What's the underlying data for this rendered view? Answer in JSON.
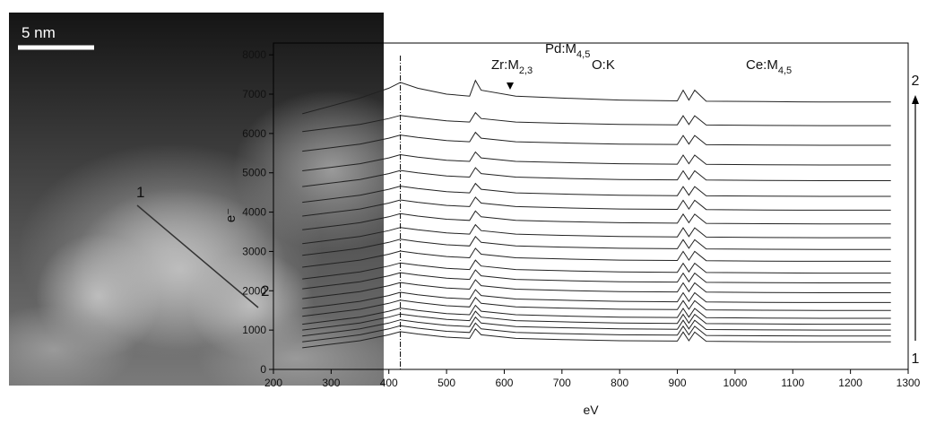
{
  "image": {
    "scale_bar": "5 nm",
    "point_labels": [
      "1",
      "2"
    ]
  },
  "chart_data": {
    "type": "line",
    "xlabel": "eV",
    "ylabel": "e⁻",
    "xlim": [
      200,
      1300
    ],
    "xticks": [
      200,
      300,
      400,
      500,
      600,
      700,
      800,
      900,
      1000,
      1100,
      1200,
      1300
    ],
    "ylim": [
      0,
      8300
    ],
    "yticks": [
      0,
      1000,
      2000,
      3000,
      4000,
      5000,
      6000,
      7000,
      8000
    ],
    "reference_line": 420,
    "annotations": [
      {
        "text": "Zr:M",
        "sub": "2,3"
      },
      {
        "text": "Pd:M",
        "sub": "4,5"
      },
      {
        "text": "O:K"
      },
      {
        "text": "Ce:M",
        "sub": "4,5"
      }
    ],
    "scan_labels": [
      "1",
      "2"
    ],
    "x": [
      250,
      300,
      350,
      400,
      420,
      450,
      500,
      540,
      550,
      560,
      620,
      700,
      800,
      900,
      910,
      920,
      930,
      950,
      1050,
      1150,
      1270
    ],
    "series": [
      {
        "color": "#222",
        "values": [
          550,
          640,
          730,
          880,
          960,
          900,
          820,
          790,
          1030,
          880,
          790,
          760,
          730,
          720,
          950,
          730,
          950,
          715,
          705,
          700,
          700
        ]
      },
      {
        "color": "#222",
        "values": [
          700,
          790,
          880,
          1030,
          1110,
          1050,
          970,
          940,
          1180,
          1030,
          940,
          910,
          880,
          870,
          1100,
          880,
          1100,
          865,
          855,
          850,
          850
        ]
      },
      {
        "color": "#222",
        "values": [
          850,
          940,
          1030,
          1180,
          1260,
          1200,
          1120,
          1090,
          1330,
          1180,
          1090,
          1060,
          1030,
          1020,
          1250,
          1030,
          1250,
          1015,
          1005,
          1000,
          1000
        ]
      },
      {
        "color": "#222",
        "values": [
          1000,
          1090,
          1180,
          1330,
          1410,
          1350,
          1270,
          1240,
          1480,
          1330,
          1240,
          1210,
          1180,
          1170,
          1400,
          1180,
          1400,
          1165,
          1155,
          1150,
          1150
        ]
      },
      {
        "color": "#222",
        "values": [
          1150,
          1240,
          1330,
          1480,
          1560,
          1500,
          1420,
          1390,
          1630,
          1480,
          1390,
          1360,
          1330,
          1320,
          1550,
          1330,
          1550,
          1315,
          1305,
          1300,
          1300
        ]
      },
      {
        "color": "#222",
        "values": [
          1350,
          1440,
          1530,
          1680,
          1760,
          1700,
          1620,
          1590,
          1830,
          1680,
          1590,
          1560,
          1530,
          1520,
          1750,
          1530,
          1750,
          1515,
          1505,
          1500,
          1500
        ]
      },
      {
        "color": "#222",
        "values": [
          1550,
          1640,
          1730,
          1880,
          1960,
          1900,
          1820,
          1790,
          2030,
          1880,
          1790,
          1760,
          1730,
          1720,
          1950,
          1730,
          1950,
          1715,
          1705,
          1700,
          1700
        ]
      },
      {
        "color": "#222",
        "values": [
          1800,
          1890,
          1980,
          2130,
          2210,
          2150,
          2070,
          2040,
          2280,
          2130,
          2040,
          2010,
          1980,
          1970,
          2200,
          1980,
          2200,
          1965,
          1955,
          1950,
          1950
        ]
      },
      {
        "color": "#222",
        "values": [
          2050,
          2140,
          2230,
          2380,
          2460,
          2400,
          2320,
          2290,
          2530,
          2380,
          2290,
          2260,
          2230,
          2220,
          2450,
          2230,
          2450,
          2215,
          2205,
          2200,
          2200
        ]
      },
      {
        "color": "#222",
        "values": [
          2300,
          2390,
          2480,
          2630,
          2710,
          2650,
          2570,
          2540,
          2780,
          2630,
          2540,
          2510,
          2480,
          2470,
          2700,
          2480,
          2700,
          2465,
          2455,
          2450,
          2450
        ]
      },
      {
        "color": "#222",
        "values": [
          2600,
          2690,
          2780,
          2930,
          3010,
          2950,
          2870,
          2840,
          3080,
          2930,
          2840,
          2810,
          2780,
          2770,
          3000,
          2780,
          3000,
          2765,
          2755,
          2750,
          2750
        ]
      },
      {
        "color": "#222",
        "values": [
          2900,
          2990,
          3080,
          3230,
          3310,
          3250,
          3170,
          3140,
          3380,
          3230,
          3140,
          3110,
          3080,
          3070,
          3300,
          3080,
          3300,
          3065,
          3055,
          3050,
          3050
        ]
      },
      {
        "color": "#222",
        "values": [
          3200,
          3290,
          3380,
          3530,
          3610,
          3550,
          3470,
          3440,
          3680,
          3530,
          3440,
          3410,
          3380,
          3370,
          3600,
          3380,
          3600,
          3365,
          3355,
          3350,
          3350
        ]
      },
      {
        "color": "#222",
        "values": [
          3550,
          3640,
          3730,
          3880,
          3960,
          3900,
          3820,
          3790,
          4030,
          3880,
          3790,
          3760,
          3730,
          3720,
          3950,
          3730,
          3950,
          3715,
          3705,
          3700,
          3700
        ]
      },
      {
        "color": "#222",
        "values": [
          3900,
          3990,
          4080,
          4230,
          4310,
          4250,
          4170,
          4140,
          4380,
          4230,
          4140,
          4110,
          4080,
          4070,
          4300,
          4080,
          4300,
          4065,
          4055,
          4050,
          4050
        ]
      },
      {
        "color": "#222",
        "values": [
          4250,
          4340,
          4430,
          4580,
          4660,
          4600,
          4520,
          4490,
          4730,
          4580,
          4490,
          4460,
          4430,
          4420,
          4650,
          4430,
          4650,
          4415,
          4405,
          4400,
          4400
        ]
      },
      {
        "color": "#222",
        "values": [
          4650,
          4740,
          4830,
          4980,
          5060,
          5000,
          4920,
          4890,
          5130,
          4980,
          4890,
          4860,
          4830,
          4820,
          5050,
          4830,
          5050,
          4815,
          4805,
          4800,
          4800
        ]
      },
      {
        "color": "#222",
        "values": [
          5050,
          5140,
          5230,
          5380,
          5460,
          5400,
          5320,
          5290,
          5530,
          5380,
          5290,
          5260,
          5230,
          5220,
          5450,
          5230,
          5450,
          5215,
          5205,
          5200,
          5200
        ]
      },
      {
        "color": "#222",
        "values": [
          5550,
          5640,
          5730,
          5880,
          5960,
          5900,
          5820,
          5790,
          6030,
          5880,
          5790,
          5760,
          5730,
          5720,
          5950,
          5730,
          5950,
          5715,
          5705,
          5700,
          5700
        ]
      },
      {
        "color": "#222",
        "values": [
          6050,
          6140,
          6230,
          6380,
          6460,
          6400,
          6320,
          6290,
          6530,
          6380,
          6290,
          6260,
          6230,
          6220,
          6450,
          6230,
          6450,
          6215,
          6205,
          6200,
          6200
        ]
      },
      {
        "color": "#222",
        "values": [
          6500,
          6700,
          6900,
          7150,
          7300,
          7150,
          7000,
          6950,
          7350,
          7100,
          6950,
          6900,
          6850,
          6830,
          7100,
          6850,
          7100,
          6820,
          6810,
          6800,
          6800
        ]
      }
    ]
  }
}
